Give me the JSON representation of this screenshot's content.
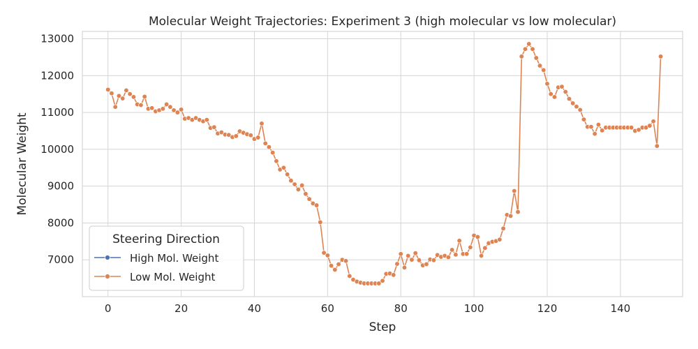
{
  "chart_data": {
    "type": "line",
    "title": "Molecular Weight Trajectories: Experiment 3 (high molecular vs low molecular)",
    "xlabel": "Step",
    "ylabel": "Molecular Weight",
    "xlim": [
      -7,
      157
    ],
    "ylim": [
      6000,
      13200
    ],
    "x_ticks": [
      0,
      20,
      40,
      60,
      80,
      100,
      120,
      140
    ],
    "y_ticks": [
      7000,
      8000,
      9000,
      10000,
      11000,
      12000,
      13000
    ],
    "grid": true,
    "legend": {
      "title": "Steering Direction",
      "placement": "lower-left",
      "entries": [
        "High Mol. Weight",
        "Low Mol. Weight"
      ]
    },
    "series": [
      {
        "name": "High Mol. Weight",
        "color": "#4c72b0",
        "values": []
      },
      {
        "name": "Low Mol. Weight",
        "color": "#dd8452",
        "values": [
          11620,
          11520,
          11150,
          11450,
          11380,
          11600,
          11500,
          11420,
          11220,
          11200,
          11430,
          11100,
          11120,
          11030,
          11060,
          11100,
          11220,
          11150,
          11060,
          11000,
          11080,
          10830,
          10850,
          10800,
          10850,
          10800,
          10760,
          10800,
          10580,
          10600,
          10430,
          10460,
          10400,
          10390,
          10330,
          10360,
          10490,
          10450,
          10410,
          10380,
          10280,
          10320,
          10700,
          10160,
          10060,
          9910,
          9680,
          9450,
          9500,
          9320,
          9150,
          9050,
          8910,
          9020,
          8790,
          8650,
          8530,
          8480,
          8020,
          7190,
          7120,
          6840,
          6730,
          6880,
          7000,
          6970,
          6560,
          6460,
          6410,
          6380,
          6360,
          6360,
          6360,
          6360,
          6360,
          6430,
          6620,
          6630,
          6590,
          6890,
          7160,
          6790,
          7110,
          7000,
          7180,
          6990,
          6850,
          6880,
          7010,
          6990,
          7130,
          7080,
          7110,
          7070,
          7270,
          7140,
          7520,
          7160,
          7160,
          7340,
          7660,
          7620,
          7110,
          7320,
          7450,
          7490,
          7510,
          7550,
          7850,
          8220,
          8190,
          8870,
          8300,
          12520,
          12720,
          12860,
          12720,
          12480,
          12270,
          12150,
          11780,
          11500,
          11420,
          11680,
          11700,
          11560,
          11370,
          11250,
          11160,
          11070,
          10810,
          10610,
          10610,
          10420,
          10670,
          10510,
          10590,
          10590,
          10590,
          10590,
          10590,
          10590,
          10590,
          10590,
          10500,
          10530,
          10590,
          10590,
          10640,
          10760,
          10090,
          12520
        ]
      }
    ]
  }
}
